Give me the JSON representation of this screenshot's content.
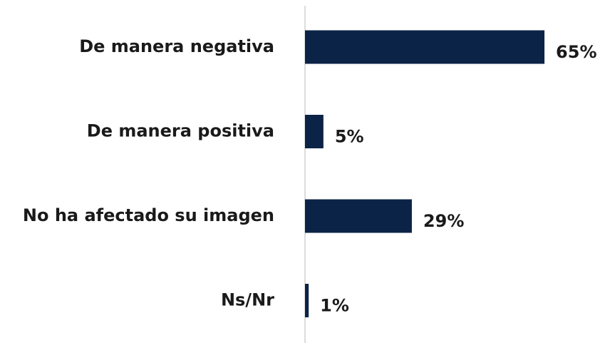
{
  "chart_data": {
    "type": "bar",
    "orientation": "horizontal",
    "categories": [
      "De manera negativa",
      "De manera positiva",
      "No ha afectado su imagen",
      "Ns/Nr"
    ],
    "values": [
      65,
      5,
      29,
      1
    ],
    "value_labels": [
      "65%",
      "5%",
      "29%",
      "1%"
    ],
    "color": "#0b2346"
  }
}
